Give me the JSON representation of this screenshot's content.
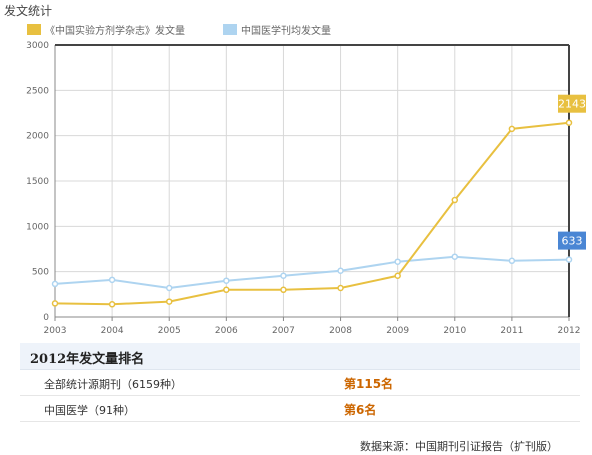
{
  "section_title": "发文统计",
  "chart_data": {
    "type": "line",
    "title": "",
    "xlabel": "",
    "ylabel": "",
    "x": [
      "2003",
      "2004",
      "2005",
      "2006",
      "2007",
      "2008",
      "2009",
      "2010",
      "2011",
      "2012"
    ],
    "ylim": [
      0,
      3000
    ],
    "yticks": [
      0,
      500,
      1000,
      1500,
      2000,
      2500,
      3000
    ],
    "grid": true,
    "legend_position": "top-left",
    "series": [
      {
        "name": "《中国实验方剂学杂志》发文量",
        "color": "#e8c040",
        "values": [
          150,
          140,
          170,
          300,
          300,
          320,
          455,
          1290,
          2075,
          2143
        ],
        "end_label": "2143"
      },
      {
        "name": "中国医学刊均发文量",
        "color": "#aed4f0",
        "values": [
          365,
          410,
          320,
          400,
          455,
          510,
          610,
          665,
          620,
          633
        ],
        "end_label": "633",
        "end_label_color": "#4a86d4"
      }
    ]
  },
  "ranking": {
    "title": "2012年发文量排名",
    "rows": [
      {
        "name": "全部统计源期刊（6159种）",
        "rank": "第115名"
      },
      {
        "name": "中国医学（91种）",
        "rank": "第6名"
      }
    ]
  },
  "source_note": "数据来源：中国期刊引证报告（扩刊版）"
}
